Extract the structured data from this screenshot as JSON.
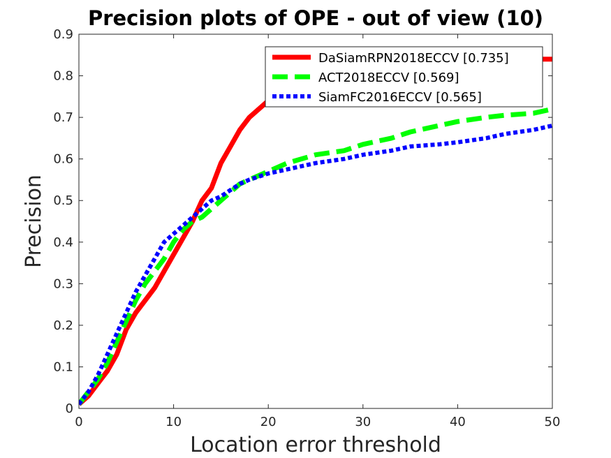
{
  "chart_data": {
    "type": "line",
    "title": "Precision plots of OPE - out of view (10)",
    "xlabel": "Location error threshold",
    "ylabel": "Precision",
    "xlim": [
      0,
      50
    ],
    "ylim": [
      0,
      0.9
    ],
    "xticks": [
      "0",
      "10",
      "20",
      "30",
      "40",
      "50"
    ],
    "yticks": [
      "0",
      "0.1",
      "0.2",
      "0.3",
      "0.4",
      "0.5",
      "0.6",
      "0.7",
      "0.8",
      "0.9"
    ],
    "grid": false,
    "legend_position": "top-right",
    "series": [
      {
        "name": "DaSiamRPN2018ECCV [0.735]",
        "color": "#ff0000",
        "style": "solid",
        "x": [
          0,
          1,
          2,
          3,
          4,
          5,
          6,
          7,
          8,
          9,
          10,
          11,
          12,
          13,
          14,
          15,
          16,
          17,
          18,
          19,
          20,
          22,
          25,
          30,
          35,
          40,
          45,
          50
        ],
        "y": [
          0.01,
          0.03,
          0.06,
          0.09,
          0.13,
          0.19,
          0.23,
          0.26,
          0.29,
          0.33,
          0.37,
          0.41,
          0.45,
          0.5,
          0.53,
          0.59,
          0.63,
          0.67,
          0.7,
          0.72,
          0.74,
          0.76,
          0.79,
          0.81,
          0.83,
          0.83,
          0.84,
          0.84
        ]
      },
      {
        "name": "ACT2018ECCV [0.569]",
        "color": "#00ff00",
        "style": "dashed",
        "x": [
          0,
          1,
          2,
          3,
          4,
          5,
          6,
          7,
          8,
          9,
          10,
          11,
          12,
          13,
          14,
          15,
          16,
          17,
          18,
          20,
          22,
          25,
          28,
          30,
          33,
          35,
          38,
          40,
          43,
          45,
          48,
          50
        ],
        "y": [
          0.01,
          0.04,
          0.07,
          0.11,
          0.16,
          0.21,
          0.26,
          0.3,
          0.33,
          0.36,
          0.4,
          0.43,
          0.45,
          0.46,
          0.48,
          0.5,
          0.52,
          0.54,
          0.55,
          0.57,
          0.59,
          0.61,
          0.62,
          0.635,
          0.65,
          0.665,
          0.68,
          0.69,
          0.7,
          0.705,
          0.71,
          0.72
        ]
      },
      {
        "name": "SiamFC2016ECCV [0.565]",
        "color": "#0000ff",
        "style": "dotted",
        "x": [
          0,
          1,
          2,
          3,
          4,
          5,
          6,
          7,
          8,
          9,
          10,
          11,
          12,
          13,
          14,
          15,
          16,
          17,
          18,
          20,
          22,
          25,
          28,
          30,
          33,
          35,
          38,
          40,
          43,
          45,
          48,
          50
        ],
        "y": [
          0.01,
          0.04,
          0.08,
          0.13,
          0.18,
          0.23,
          0.28,
          0.32,
          0.36,
          0.4,
          0.42,
          0.44,
          0.46,
          0.48,
          0.5,
          0.51,
          0.525,
          0.54,
          0.55,
          0.565,
          0.575,
          0.59,
          0.6,
          0.61,
          0.62,
          0.63,
          0.635,
          0.64,
          0.65,
          0.66,
          0.67,
          0.68
        ]
      }
    ]
  }
}
